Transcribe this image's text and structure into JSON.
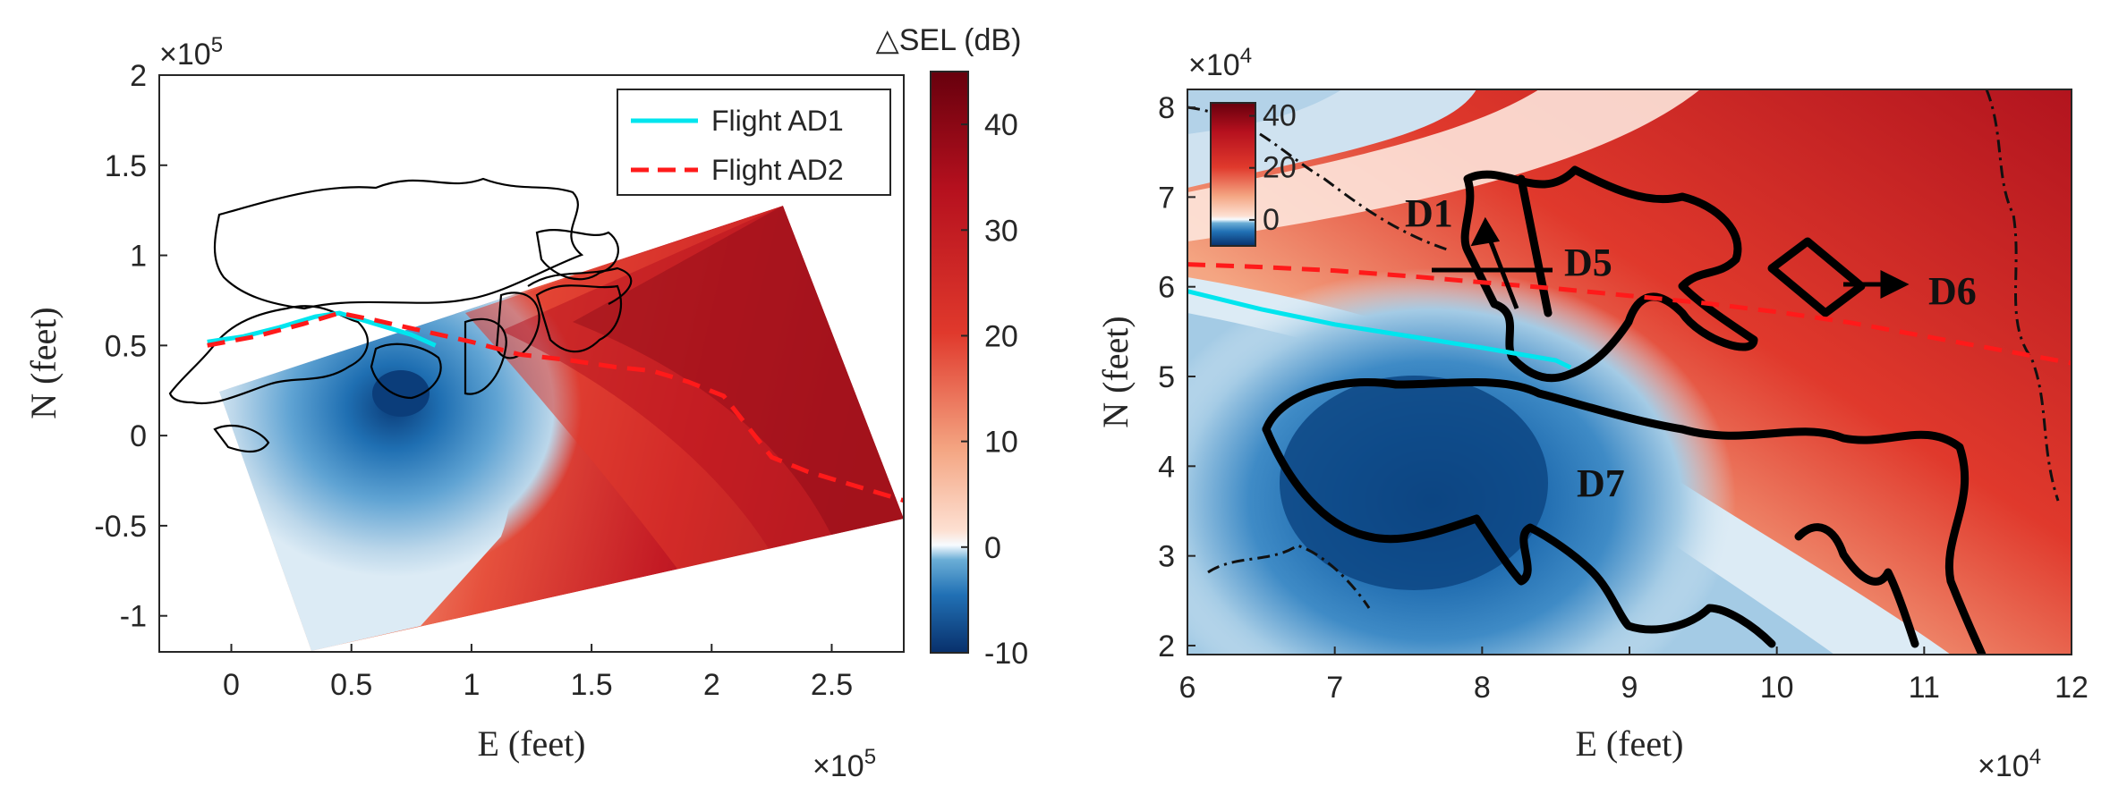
{
  "chart_data": [
    {
      "type": "contour",
      "title": "",
      "xlabel": "E (feet)",
      "ylabel": "N (feet)",
      "x_exponent_label": "×10",
      "x_exponent_power": "5",
      "y_exponent_label": "×10",
      "y_exponent_power": "5",
      "xlim": [
        -0.3,
        2.8
      ],
      "ylim": [
        -1.2,
        2.0
      ],
      "xticks": [
        0,
        0.5,
        1,
        1.5,
        2,
        2.5
      ],
      "xtick_labels": [
        "0",
        "0.5",
        "1",
        "1.5",
        "2",
        "2.5"
      ],
      "yticks": [
        -1,
        -0.5,
        0,
        0.5,
        1,
        1.5,
        2
      ],
      "ytick_labels": [
        "-1",
        "-0.5",
        "0",
        "0.5",
        "1",
        "1.5",
        "2"
      ],
      "colorbar": {
        "label": "△SEL (dB)",
        "range": [
          -10,
          45
        ],
        "ticks": [
          -10,
          0,
          10,
          20,
          30,
          40
        ],
        "tick_labels": [
          "-10",
          "0",
          "10",
          "20",
          "30",
          "40"
        ]
      },
      "legend": {
        "placement": "top-right",
        "entries": [
          {
            "label": "Flight AD1",
            "color": "#00e5ee",
            "style": "solid"
          },
          {
            "label": "Flight AD2",
            "color": "#ff1a1a",
            "style": "dashed"
          }
        ]
      },
      "series": [
        {
          "name": "Flight AD1",
          "x": [
            -0.1,
            0.05,
            0.2,
            0.35,
            0.45,
            0.6,
            0.75,
            0.85
          ],
          "y": [
            0.52,
            0.55,
            0.6,
            0.66,
            0.68,
            0.62,
            0.56,
            0.5
          ]
        },
        {
          "name": "Flight AD2",
          "x": [
            -0.1,
            0.1,
            0.3,
            0.45,
            0.6,
            0.8,
            1.0,
            1.2,
            1.4,
            1.6,
            1.75,
            1.9,
            2.05,
            2.15,
            2.25,
            2.4,
            2.55,
            2.7,
            2.8
          ],
          "y": [
            0.5,
            0.55,
            0.62,
            0.68,
            0.64,
            0.58,
            0.52,
            0.45,
            0.42,
            0.38,
            0.36,
            0.3,
            0.22,
            0.05,
            -0.12,
            -0.2,
            -0.26,
            -0.32,
            -0.36
          ]
        }
      ]
    },
    {
      "type": "contour",
      "title": "",
      "xlabel": "E (feet)",
      "ylabel": "N (feet)",
      "x_exponent_label": "×10",
      "x_exponent_power": "4",
      "y_exponent_label": "×10",
      "y_exponent_power": "4",
      "xlim": [
        6,
        12
      ],
      "ylim": [
        1.9,
        8.2
      ],
      "xticks": [
        6,
        7,
        8,
        9,
        10,
        11,
        12
      ],
      "xtick_labels": [
        "6",
        "7",
        "8",
        "9",
        "10",
        "11",
        "12"
      ],
      "yticks": [
        2,
        3,
        4,
        5,
        6,
        7,
        8
      ],
      "ytick_labels": [
        "2",
        "3",
        "4",
        "5",
        "6",
        "7",
        "8"
      ],
      "colorbar": {
        "label": "",
        "range": [
          -10,
          45
        ],
        "ticks": [
          0,
          20,
          40
        ],
        "tick_labels": [
          "0",
          "20",
          "40"
        ]
      },
      "annotations": [
        "D1",
        "D5",
        "D6",
        "D7"
      ],
      "series": [
        {
          "name": "Flight AD1",
          "x": [
            6,
            6.5,
            7,
            7.5,
            8,
            8.5,
            8.6
          ],
          "y": [
            5.95,
            5.75,
            5.58,
            5.45,
            5.32,
            5.18,
            5.1
          ]
        },
        {
          "name": "Flight AD2",
          "x": [
            6,
            6.5,
            7,
            7.5,
            8,
            8.5,
            9,
            9.5,
            10,
            10.5,
            11,
            11.5,
            12
          ],
          "y": [
            6.25,
            6.22,
            6.18,
            6.12,
            6.05,
            5.98,
            5.9,
            5.82,
            5.72,
            5.6,
            5.45,
            5.3,
            5.15
          ]
        }
      ]
    }
  ]
}
